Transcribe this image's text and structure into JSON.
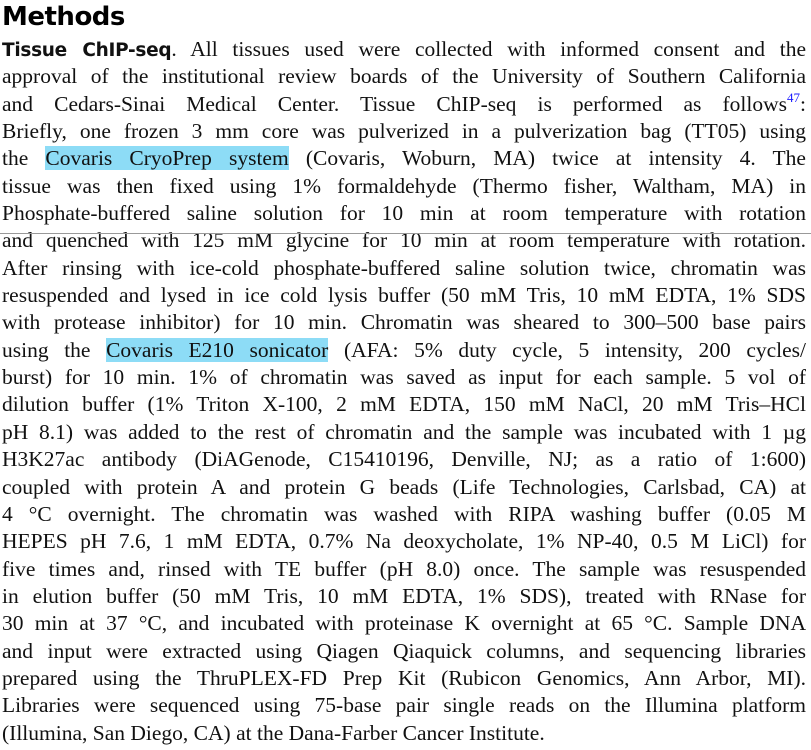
{
  "heading": "Methods",
  "paragraph": {
    "lead": "Tissue ChIP-seq",
    "line1_rest": ". All tissues used were collected with informed consent and the",
    "line2": "approval of the institutional review boards of the University of Southern California",
    "line3": "and Cedars-Sinai Medical Center. Tissue ChIP-seq is performed as follows",
    "line3_ref": "47",
    "line3_end": ":",
    "line4": "Briefly, one frozen 3 mm core was pulverized in a pulverization bag (TT05) using",
    "line5_pre": "the ",
    "line5_highlight": "Covaris CryoPrep system",
    "line5_post": " (Covaris, Woburn, MA) twice at intensity 4. The",
    "line6": "tissue was then fixed using 1% formaldehyde (Thermo fisher, Waltham, MA) in",
    "line7": "Phosphate-buffered saline solution for 10 min at room temperature with rotation",
    "line8": "and quenched with 125 mM glycine for 10 min at room temperature with rotation.",
    "line9": "After rinsing with ice-cold phosphate-buffered saline solution twice, chromatin was",
    "line10": "resuspended and lysed in ice cold lysis buffer (50 mM Tris, 10 mM EDTA, 1% SDS",
    "line11": "with protease inhibitor) for 10 min. Chromatin was sheared to 300–500 base pairs",
    "line12_pre": "using the ",
    "line12_highlight": "Covaris E210 sonicator",
    "line12_post": " (AFA: 5% duty cycle, 5 intensity, 200 cycles/",
    "line13": "burst) for 10 min. 1% of chromatin was saved as input for each sample. 5 vol of",
    "line14": "dilution buffer (1% Triton X-100, 2 mM EDTA, 150 mM NaCl, 20 mM Tris–HCl",
    "line15": "pH 8.1) was added to the rest of chromatin and the sample was incubated with 1 µg",
    "line16": "H3K27ac antibody (DiAGenode, C15410196, Denville, NJ; as a ratio of 1:600)",
    "line17": "coupled with protein A and protein G beads (Life Technologies, Carlsbad, CA) at",
    "line18": "4 °C overnight. The chromatin was washed with RIPA washing buffer (0.05 M",
    "line19": "HEPES pH 7.6, 1 mM EDTA, 0.7% Na deoxycholate, 1% NP-40, 0.5 M LiCl) for",
    "line20": "five times and, rinsed with TE buffer (pH 8.0) once. The sample was resuspended",
    "line21": "in elution buffer (50 mM Tris, 10 mM EDTA, 1% SDS), treated with RNase for",
    "line22": "30 min at 37 °C, and incubated with proteinase K overnight at 65 °C. Sample DNA",
    "line23": "and input were extracted using Qiagen Qiaquick columns, and sequencing libraries",
    "line24": "prepared using the ThruPLEX-FD Prep Kit (Rubicon Genomics, Ann Arbor, MI).",
    "line25": "Libraries were sequenced using 75-base pair single reads on the Illumina platform",
    "line26": "(Illumina, San Diego, CA) at the Dana-Farber Cancer Institute."
  },
  "colors": {
    "highlight": "#8ddcf6",
    "reference_link": "#1a1aff"
  }
}
